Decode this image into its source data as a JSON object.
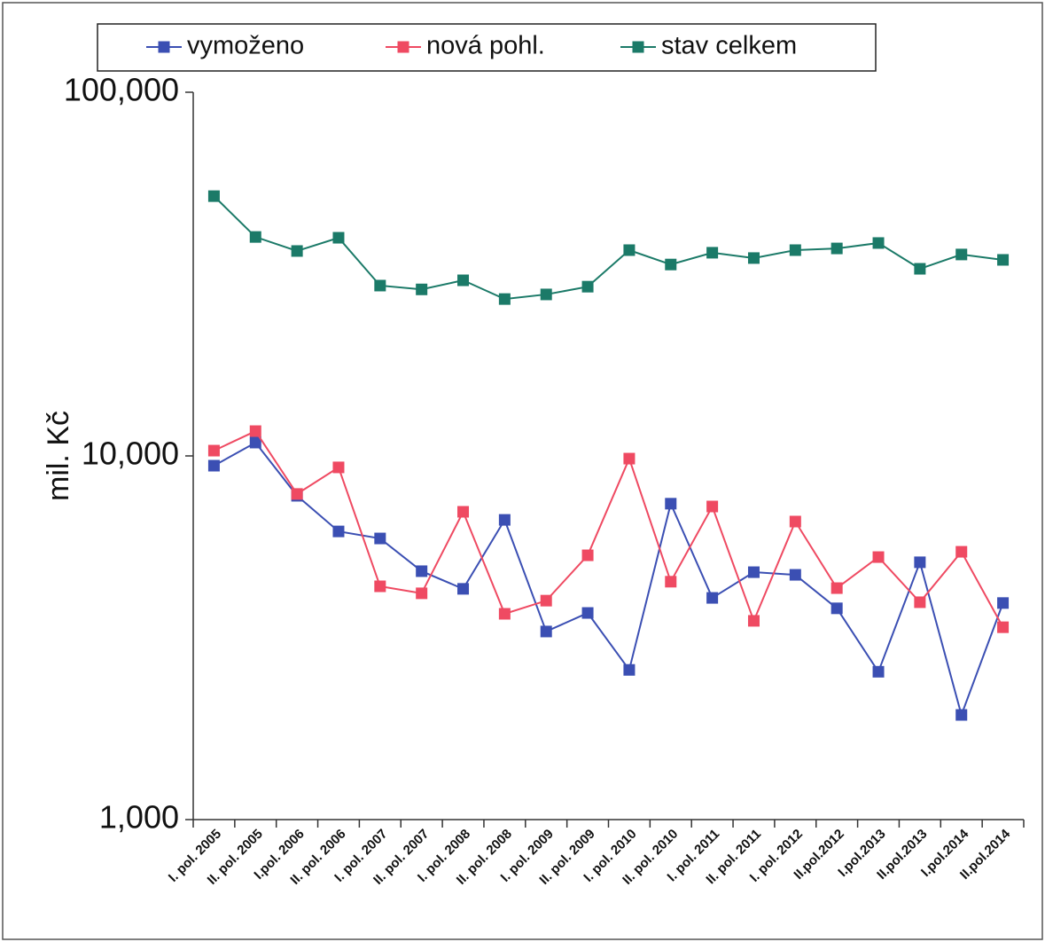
{
  "chart_data": {
    "type": "line",
    "y_label": "mil. Kč",
    "log_y": true,
    "categories": [
      "I. pol. 2005",
      "II. pol. 2005",
      "I.pol. 2006",
      "II. pol. 2006",
      "I. pol. 2007",
      "II. pol. 2007",
      "I. pol. 2008",
      "II. pol. 2008",
      "I. pol. 2009",
      "II. pol. 2009",
      "I. pol. 2010",
      "II. pol. 2010",
      "I. pol. 2011",
      "II. pol. 2011",
      "I. pol. 2012",
      "II.pol.2012",
      "I.pol.2013",
      "II.pol.2013",
      "I.pol.2014",
      "II.pol.2014"
    ],
    "series": [
      {
        "name": "vymoženo",
        "color": "#3b4fb3",
        "values": [
          9400,
          10880,
          7770,
          6200,
          5930,
          4820,
          4310,
          6670,
          3290,
          3700,
          2580,
          7390,
          4070,
          4790,
          4710,
          3810,
          2550,
          5100,
          1940,
          3940
        ]
      },
      {
        "name": "nová pohl.",
        "color": "#ef4a62",
        "values": [
          10340,
          11700,
          7860,
          9300,
          4380,
          4190,
          7020,
          3680,
          4000,
          5330,
          9830,
          4510,
          7260,
          3520,
          6600,
          4330,
          5270,
          3960,
          5450,
          3380
        ]
      },
      {
        "name": "stav celkem",
        "color": "#1b7a68",
        "values": [
          51800,
          40000,
          36600,
          39800,
          29400,
          28700,
          30400,
          27000,
          27800,
          29200,
          36800,
          33600,
          36200,
          35000,
          36800,
          37200,
          38500,
          32700,
          35800,
          34600
        ]
      }
    ],
    "ylim": [
      1000,
      100000
    ],
    "yticks": [
      {
        "value": 1000,
        "label": "1,000"
      },
      {
        "value": 10000,
        "label": "10,000"
      },
      {
        "value": 100000,
        "label": "100,000"
      }
    ]
  }
}
